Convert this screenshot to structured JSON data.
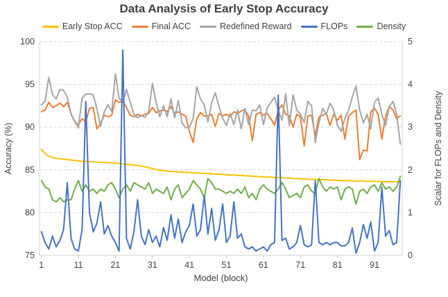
{
  "colors": {
    "background": "#FFFFFF",
    "title_text": "#3F3F3F",
    "axis_text": "#404040",
    "gridline": "#D9D9D9",
    "plot_border": "#D9D9D9",
    "tick_mark": "#BFBFBF"
  },
  "chart_data": {
    "type": "line",
    "title": "Data Analysis of Early Stop Accuracy",
    "xlabel": "Model (block)",
    "grid": "horizontal-dashed",
    "legend_position": "top",
    "x_ticks": [
      1,
      11,
      21,
      31,
      41,
      51,
      61,
      71,
      81,
      91
    ],
    "left_axis": {
      "label": "Accuracy (%)",
      "min": 75,
      "max": 100,
      "ticks": [
        75,
        80,
        85,
        90,
        95,
        100
      ]
    },
    "right_axis": {
      "label": "Scalar for FLOPs and Density",
      "min": 0,
      "max": 5,
      "ticks": [
        0,
        1,
        2,
        3,
        4,
        5
      ]
    },
    "x": [
      1,
      2,
      3,
      4,
      5,
      6,
      7,
      8,
      9,
      10,
      11,
      12,
      13,
      14,
      15,
      16,
      17,
      18,
      19,
      20,
      21,
      22,
      23,
      24,
      25,
      26,
      27,
      28,
      29,
      30,
      31,
      32,
      33,
      34,
      35,
      36,
      37,
      38,
      39,
      40,
      41,
      42,
      43,
      44,
      45,
      46,
      47,
      48,
      49,
      50,
      51,
      52,
      53,
      54,
      55,
      56,
      57,
      58,
      59,
      60,
      61,
      62,
      63,
      64,
      65,
      66,
      67,
      68,
      69,
      70,
      71,
      72,
      73,
      74,
      75,
      76,
      77,
      78,
      79,
      80,
      81,
      82,
      83,
      84,
      85,
      86,
      87,
      88,
      89,
      90,
      91,
      92,
      93,
      94,
      95,
      96,
      97,
      98
    ],
    "series": [
      {
        "name": "Early Stop ACC",
        "color": "#FFC000",
        "axis": "left",
        "values": [
          87.4,
          86.9,
          86.6,
          86.45,
          86.35,
          86.3,
          86.25,
          86.2,
          86.15,
          86.1,
          86.05,
          86.0,
          86.0,
          85.95,
          85.95,
          85.9,
          85.9,
          85.85,
          85.85,
          85.8,
          85.8,
          85.75,
          85.7,
          85.65,
          85.6,
          85.55,
          85.5,
          85.45,
          85.35,
          85.25,
          85.15,
          85.05,
          84.95,
          84.9,
          84.85,
          84.8,
          84.8,
          84.75,
          84.75,
          84.7,
          84.7,
          84.65,
          84.65,
          84.6,
          84.6,
          84.55,
          84.55,
          84.5,
          84.5,
          84.45,
          84.45,
          84.4,
          84.4,
          84.35,
          84.35,
          84.3,
          84.3,
          84.25,
          84.25,
          84.2,
          84.2,
          84.15,
          84.15,
          84.1,
          84.1,
          84.1,
          84.05,
          84.05,
          84.0,
          84.0,
          83.95,
          83.95,
          83.9,
          83.9,
          83.9,
          83.85,
          83.85,
          83.85,
          83.8,
          83.8,
          83.8,
          83.75,
          83.75,
          83.75,
          83.7,
          83.7,
          83.7,
          83.7,
          83.65,
          83.65,
          83.65,
          83.65,
          83.6,
          83.6,
          83.6,
          83.6,
          83.6,
          83.6
        ]
      },
      {
        "name": "Final ACC",
        "color": "#ED7D31",
        "axis": "left",
        "values": [
          91.8,
          92.0,
          92.9,
          92.3,
          92.5,
          92.8,
          92.4,
          92.9,
          91.6,
          90.6,
          90.3,
          91.0,
          90.6,
          92.2,
          92.3,
          89.8,
          90.4,
          91.4,
          91.2,
          91.4,
          93.2,
          92.9,
          93.0,
          92.3,
          91.4,
          91.2,
          91.5,
          91.3,
          91.5,
          91.6,
          92.3,
          91.7,
          91.9,
          92.0,
          91.8,
          92.4,
          91.6,
          91.8,
          91.5,
          91.3,
          89.5,
          88.2,
          91.0,
          91.7,
          91.3,
          91.3,
          91.5,
          90.1,
          91.6,
          91.3,
          91.5,
          91.2,
          91.8,
          91.6,
          91.9,
          92.0,
          91.3,
          88.4,
          91.5,
          91.7,
          91.4,
          91.6,
          91.0,
          90.2,
          92.0,
          92.6,
          91.5,
          91.3,
          90.0,
          91.5,
          91.2,
          87.8,
          91.3,
          91.4,
          89.0,
          91.2,
          91.4,
          91.6,
          90.2,
          91.5,
          90.8,
          91.4,
          88.6,
          91.3,
          91.7,
          92.0,
          86.2,
          87.3,
          87.2,
          91.8,
          92.2,
          91.5,
          88.6,
          91.3,
          92.4,
          92.0,
          91.0,
          91.3
        ]
      },
      {
        "name": "Redefined Reward",
        "color": "#A5A5A5",
        "axis": "left",
        "values": [
          92.6,
          93.0,
          95.8,
          93.8,
          93.3,
          94.4,
          94.3,
          93.5,
          91.5,
          90.7,
          89.9,
          93.4,
          93.9,
          93.9,
          93.8,
          92.2,
          90.1,
          91.8,
          92.6,
          91.8,
          96.2,
          93.4,
          92.9,
          94.4,
          92.9,
          91.5,
          91.1,
          91.4,
          91.1,
          91.8,
          95.1,
          92.9,
          91.2,
          92.5,
          91.2,
          93.3,
          91.1,
          93.1,
          90.5,
          89.9,
          90.0,
          91.0,
          94.7,
          93.3,
          92.6,
          90.6,
          92.9,
          94.0,
          92.4,
          91.0,
          90.2,
          91.6,
          90.3,
          92.0,
          89.8,
          92.2,
          90.3,
          92.0,
          91.9,
          92.6,
          90.3,
          92.2,
          92.9,
          93.5,
          92.0,
          90.8,
          93.9,
          90.2,
          93.8,
          92.0,
          91.5,
          90.5,
          93.0,
          92.5,
          88.2,
          90.5,
          92.2,
          91.5,
          92.8,
          92.0,
          90.2,
          89.5,
          91.0,
          92.0,
          93.5,
          94.8,
          92.0,
          90.5,
          91.5,
          89.8,
          92.9,
          93.4,
          91.5,
          90.2,
          92.4,
          93.0,
          91.5,
          88.0
        ]
      },
      {
        "name": "FLOPs",
        "color": "#4472C4",
        "axis": "right",
        "values": [
          0.55,
          0.3,
          0.15,
          0.45,
          0.2,
          0.35,
          0.6,
          1.7,
          0.4,
          0.15,
          0.1,
          0.6,
          3.6,
          1.0,
          0.55,
          0.75,
          1.25,
          0.5,
          0.7,
          0.45,
          0.3,
          0.1,
          4.8,
          0.4,
          0.15,
          0.55,
          1.3,
          0.45,
          0.25,
          0.6,
          0.3,
          0.45,
          0.2,
          0.65,
          0.35,
          0.95,
          0.4,
          0.85,
          0.3,
          0.55,
          0.7,
          1.2,
          0.45,
          0.6,
          1.4,
          0.5,
          1.1,
          0.35,
          0.6,
          1.2,
          0.3,
          0.45,
          1.25,
          0.4,
          0.5,
          0.2,
          0.15,
          0.2,
          0.1,
          0.15,
          0.2,
          0.1,
          0.25,
          0.3,
          3.75,
          0.35,
          0.4,
          0.15,
          0.2,
          0.3,
          0.7,
          0.25,
          0.2,
          0.25,
          1.75,
          0.3,
          0.25,
          0.3,
          0.25,
          0.3,
          0.3,
          0.22,
          0.22,
          0.3,
          0.64,
          0.05,
          0.3,
          0.72,
          0.4,
          0.78,
          0.1,
          0.3,
          1.6,
          0.45,
          0.58,
          0.25,
          0.3,
          1.75
        ]
      },
      {
        "name": "Density",
        "color": "#70AD47",
        "axis": "right",
        "values": [
          1.75,
          1.6,
          1.55,
          1.3,
          1.25,
          1.35,
          1.25,
          1.3,
          1.3,
          1.55,
          1.75,
          1.5,
          1.65,
          1.5,
          1.55,
          1.45,
          1.55,
          1.5,
          1.65,
          1.7,
          1.55,
          1.35,
          1.55,
          1.65,
          1.5,
          1.7,
          1.65,
          1.6,
          1.55,
          1.7,
          1.45,
          1.55,
          1.5,
          1.45,
          1.6,
          1.3,
          1.55,
          1.65,
          1.35,
          1.45,
          1.55,
          1.75,
          1.65,
          1.55,
          1.35,
          1.8,
          1.7,
          1.55,
          1.55,
          1.5,
          1.45,
          1.5,
          1.45,
          1.55,
          1.45,
          1.6,
          1.35,
          1.45,
          1.3,
          1.55,
          1.65,
          1.55,
          1.5,
          1.45,
          1.55,
          1.7,
          1.55,
          1.35,
          1.4,
          1.45,
          1.35,
          1.6,
          1.65,
          1.5,
          1.45,
          1.8,
          1.6,
          1.5,
          1.6,
          1.55,
          1.6,
          1.3,
          1.55,
          1.6,
          1.55,
          1.2,
          1.5,
          1.55,
          1.45,
          1.6,
          1.65,
          1.5,
          1.7,
          1.55,
          1.6,
          1.5,
          1.6,
          1.85
        ]
      }
    ]
  }
}
